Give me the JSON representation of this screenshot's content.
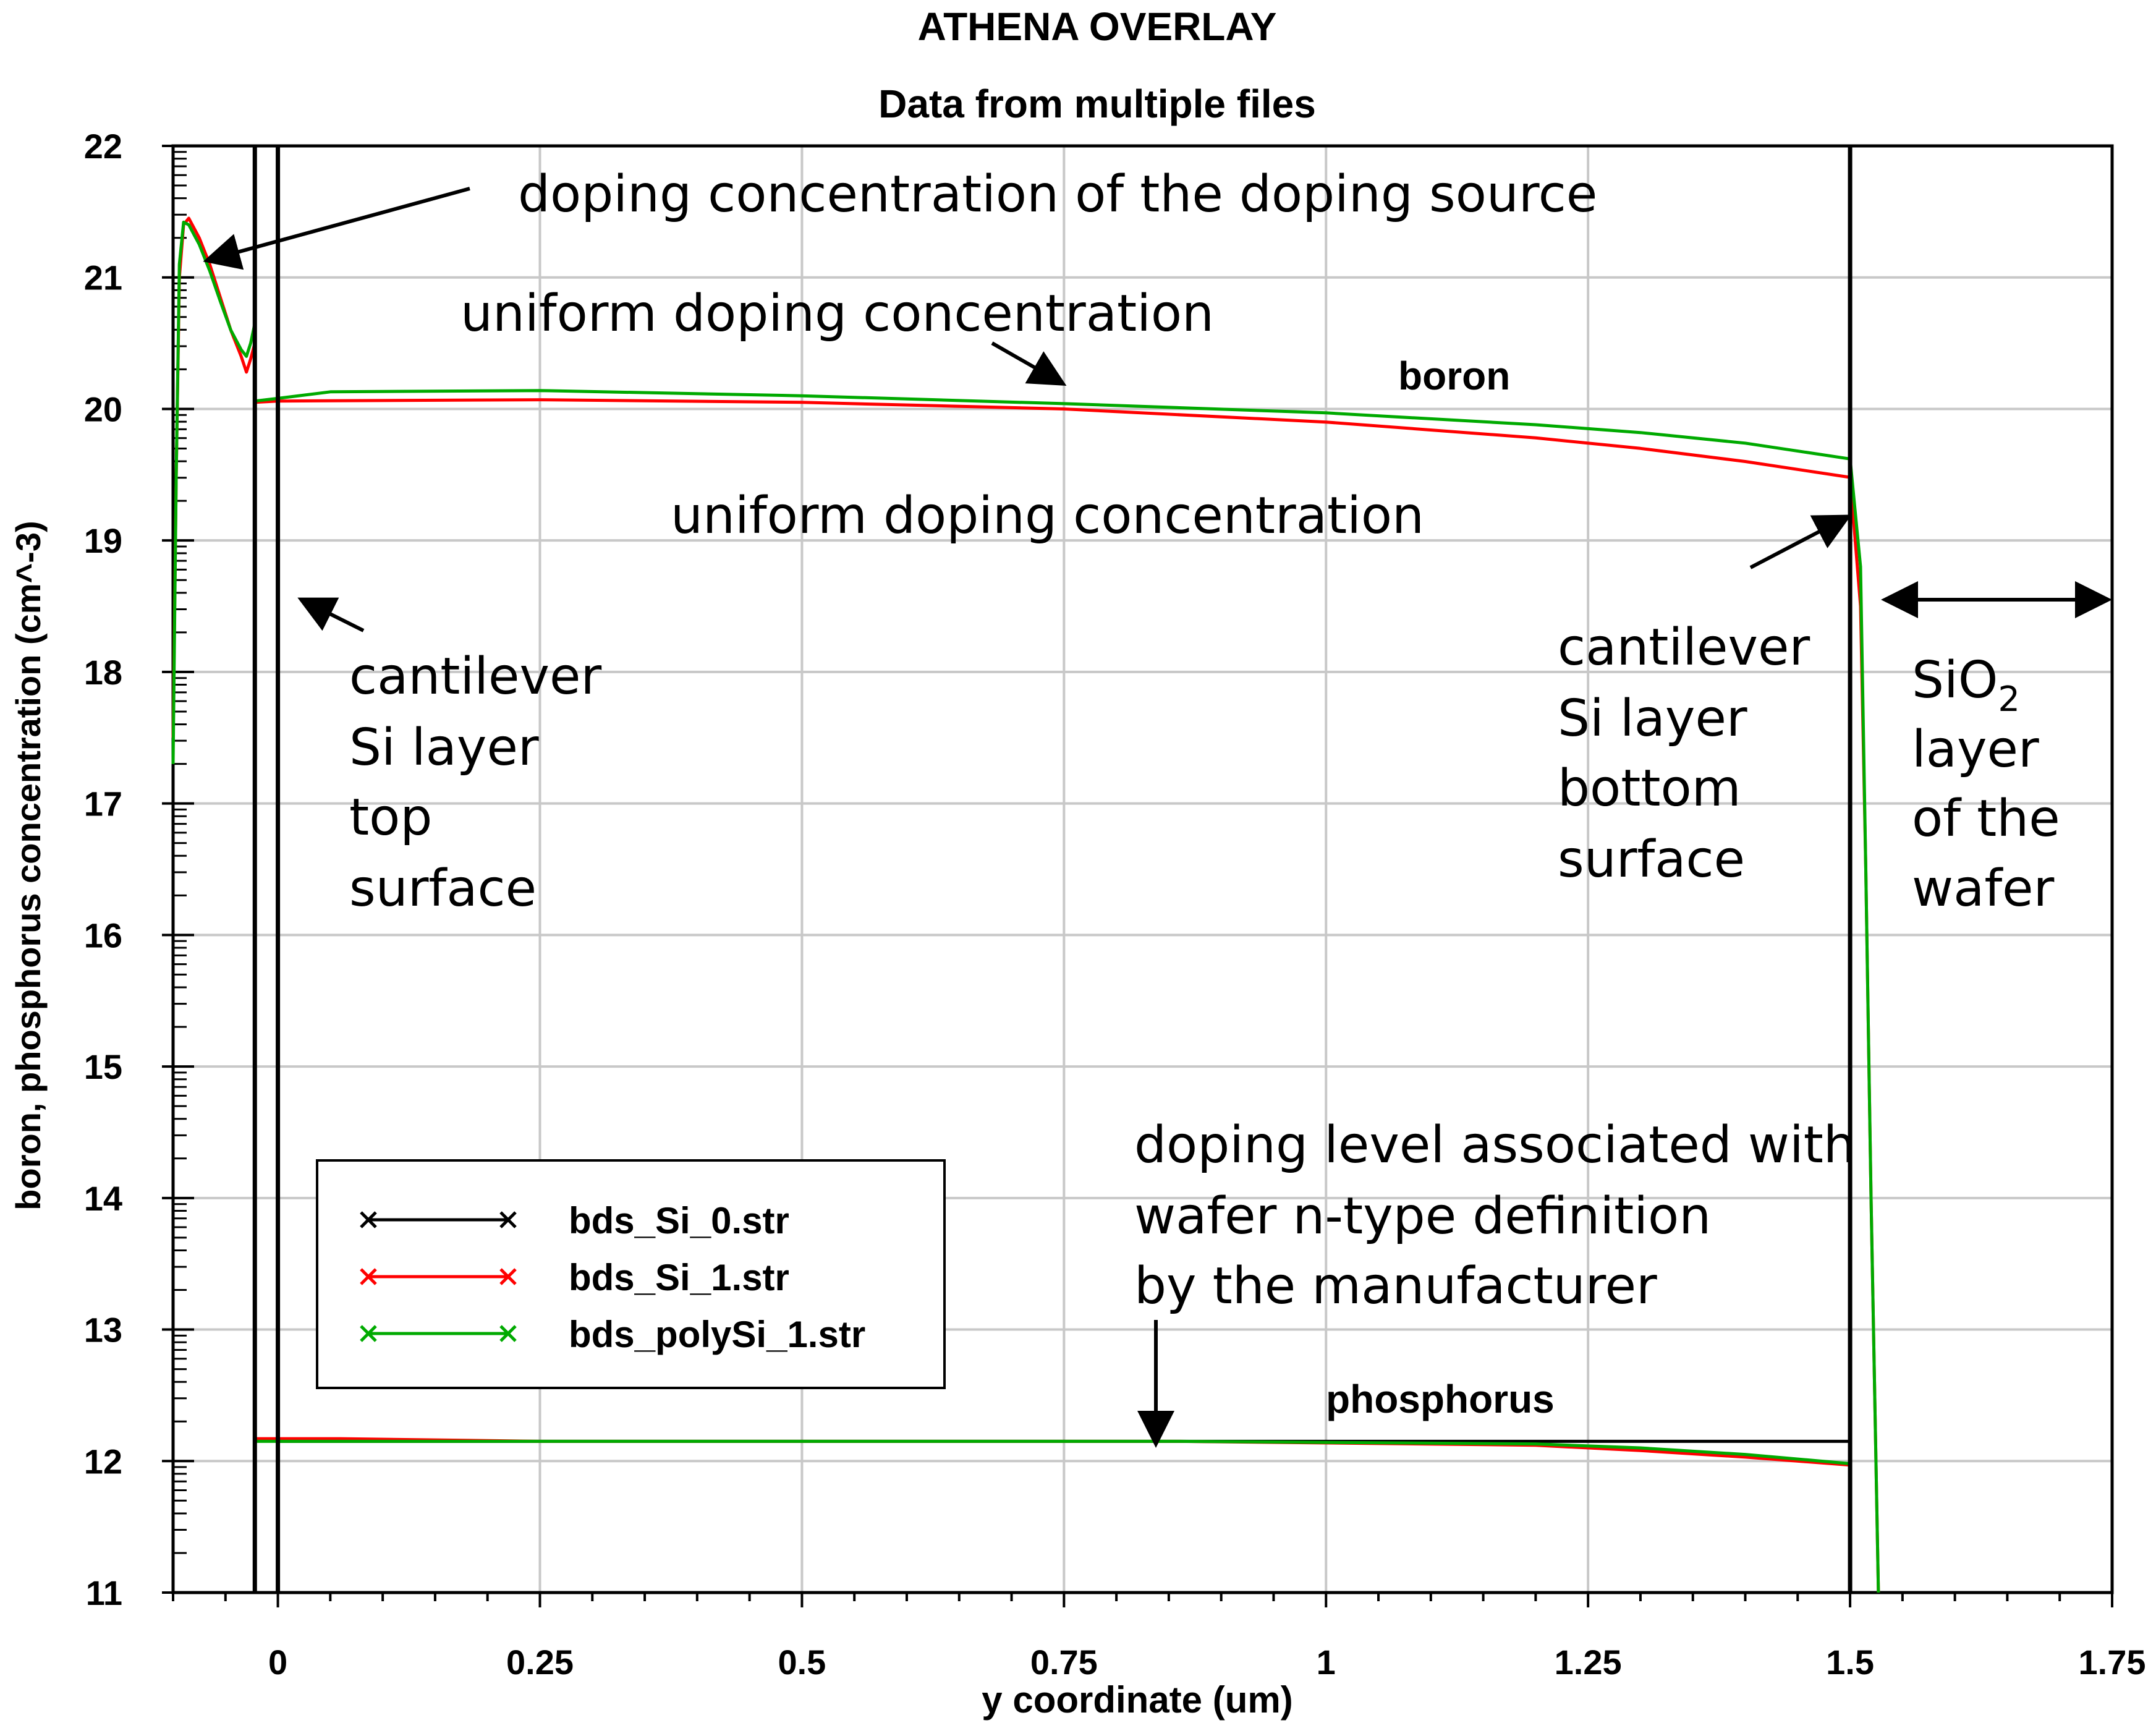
{
  "chart_data": {
    "type": "line",
    "title": "ATHENA OVERLAY",
    "subtitle": "Data from multiple files",
    "xlabel": "y coordinate (um)",
    "ylabel": "boron, phosphorus concentration (cm^-3)",
    "xlim": [
      -0.1,
      1.75
    ],
    "ylim": [
      11,
      22
    ],
    "x_ticks": [
      0,
      0.25,
      0.5,
      0.75,
      1,
      1.25,
      1.5,
      1.75
    ],
    "x_tick_labels": [
      "0",
      "0.25",
      "0.5",
      "0.75",
      "1",
      "1.25",
      "1.5",
      "1.75"
    ],
    "y_ticks": [
      11,
      12,
      13,
      14,
      15,
      16,
      17,
      18,
      19,
      20,
      21,
      22
    ],
    "y_tick_labels": [
      "11",
      "12",
      "13",
      "14",
      "15",
      "16",
      "17",
      "18",
      "19",
      "20",
      "21",
      "22"
    ],
    "grid": true,
    "legend_position": "lower-left",
    "boundaries": [
      -0.022,
      0.0,
      1.5
    ],
    "series": [
      {
        "name": "bds_Si_0.str",
        "color": "#000000",
        "points": [
          [
            0.0,
            12.15
          ],
          [
            1.5,
            12.15
          ]
        ]
      },
      {
        "name": "bds_Si_1.str",
        "color": "#ff0000",
        "points": [
          [
            -0.1,
            17.5
          ],
          [
            -0.097,
            19.5
          ],
          [
            -0.094,
            21.0
          ],
          [
            -0.09,
            21.4
          ],
          [
            -0.085,
            21.45
          ],
          [
            -0.075,
            21.3
          ],
          [
            -0.065,
            21.1
          ],
          [
            -0.055,
            20.85
          ],
          [
            -0.045,
            20.6
          ],
          [
            -0.035,
            20.4
          ],
          [
            -0.03,
            20.28
          ],
          [
            -0.026,
            20.38
          ],
          [
            -0.022,
            20.5
          ],
          [
            -0.022,
            20.05
          ],
          [
            0.0,
            20.06
          ],
          [
            0.25,
            20.07
          ],
          [
            0.5,
            20.05
          ],
          [
            0.75,
            20.0
          ],
          [
            1.0,
            19.9
          ],
          [
            1.2,
            19.78
          ],
          [
            1.3,
            19.7
          ],
          [
            1.4,
            19.6
          ],
          [
            1.5,
            19.48
          ],
          [
            1.51,
            18.5
          ],
          [
            1.515,
            16.5
          ],
          [
            1.52,
            14.0
          ],
          [
            1.527,
            11.0
          ]
        ]
      },
      {
        "name": "bds_polySi_1.str",
        "color": "#00aa00",
        "points": [
          [
            -0.1,
            17.3
          ],
          [
            -0.097,
            19.5
          ],
          [
            -0.094,
            21.1
          ],
          [
            -0.09,
            21.42
          ],
          [
            -0.085,
            21.4
          ],
          [
            -0.075,
            21.25
          ],
          [
            -0.065,
            21.05
          ],
          [
            -0.055,
            20.82
          ],
          [
            -0.045,
            20.6
          ],
          [
            -0.035,
            20.45
          ],
          [
            -0.03,
            20.4
          ],
          [
            -0.026,
            20.5
          ],
          [
            -0.022,
            20.65
          ],
          [
            -0.022,
            20.06
          ],
          [
            0.0,
            20.08
          ],
          [
            0.05,
            20.13
          ],
          [
            0.25,
            20.14
          ],
          [
            0.5,
            20.1
          ],
          [
            0.75,
            20.04
          ],
          [
            1.0,
            19.97
          ],
          [
            1.2,
            19.88
          ],
          [
            1.3,
            19.82
          ],
          [
            1.4,
            19.74
          ],
          [
            1.5,
            19.62
          ],
          [
            1.51,
            18.8
          ],
          [
            1.515,
            16.5
          ],
          [
            1.52,
            14.0
          ],
          [
            1.527,
            11.0
          ]
        ]
      },
      {
        "name": "phosphorus bds_Si_1.str",
        "legend": false,
        "color": "#ff0000",
        "points": [
          [
            -0.022,
            12.17
          ],
          [
            0.06,
            12.17
          ],
          [
            0.25,
            12.15
          ],
          [
            0.86,
            12.15
          ],
          [
            1.2,
            12.12
          ],
          [
            1.3,
            12.08
          ],
          [
            1.4,
            12.03
          ],
          [
            1.5,
            11.97
          ]
        ]
      },
      {
        "name": "phosphorus bds_polySi_1.str",
        "legend": false,
        "color": "#00aa00",
        "points": [
          [
            -0.022,
            12.15
          ],
          [
            0.25,
            12.15
          ],
          [
            0.86,
            12.15
          ],
          [
            1.2,
            12.13
          ],
          [
            1.3,
            12.1
          ],
          [
            1.4,
            12.05
          ],
          [
            1.5,
            11.98
          ]
        ]
      }
    ],
    "annotations": {
      "doping_source": "doping concentration of the doping source",
      "uniform_upper": "uniform doping concentration",
      "uniform_lower": "uniform doping concentration",
      "boron": "boron",
      "phosphorus": "phosphorus",
      "top_surface": [
        "cantilever",
        "Si layer",
        "top",
        "surface"
      ],
      "bottom_surface": [
        "cantilever",
        "Si layer",
        "bottom",
        "surface"
      ],
      "sio2_prefix": "SiO",
      "sio2_sub": "2",
      "sio2_rest": [
        "layer",
        "of the",
        "wafer"
      ],
      "wafer_doping": [
        "doping level associated with",
        "wafer n-type definition",
        "by the manufacturer"
      ]
    }
  }
}
